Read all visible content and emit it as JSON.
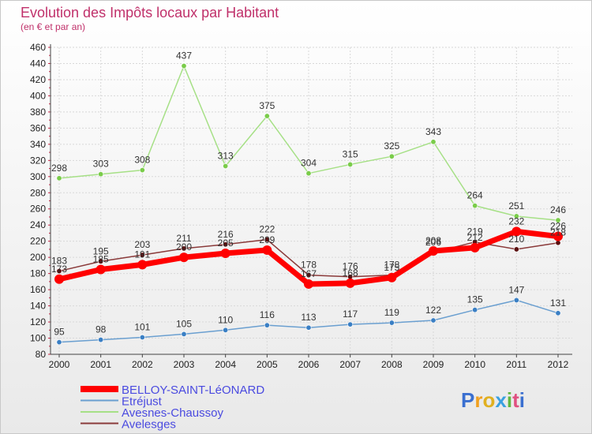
{
  "chart_data": {
    "type": "line",
    "title": "Evolution des Impôts locaux par Habitant",
    "subtitle": "(en € et par an)",
    "xlabel": "",
    "ylabel": "",
    "x": [
      "2000",
      "2001",
      "2002",
      "2003",
      "2004",
      "2005",
      "2006",
      "2007",
      "2008",
      "2009",
      "2010",
      "2011",
      "2012"
    ],
    "ylim": [
      80,
      460
    ],
    "ytick_step": 20,
    "grid": true,
    "legend": "bottom-left",
    "series": [
      {
        "name": "BELLOY-SAINT-LéONARD",
        "color": "#ff0000",
        "marker": "#ff0000",
        "values": [
          173,
          185,
          191,
          200,
          205,
          209,
          167,
          168,
          175,
          208,
          212,
          232,
          226
        ],
        "labels": [
          "173",
          "185",
          "191",
          "200",
          "205",
          "209",
          "167",
          "168",
          "175",
          "208",
          "212",
          "232",
          "226"
        ]
      },
      {
        "name": "Etréjust",
        "color": "#6a9fd0",
        "marker": "#3a7fc4",
        "values": [
          95,
          98,
          101,
          105,
          110,
          116,
          113,
          117,
          119,
          122,
          135,
          147,
          131
        ],
        "labels": [
          "95",
          "98",
          "101",
          "105",
          "110",
          "116",
          "113",
          "117",
          "119",
          "122",
          "135",
          "147",
          "131"
        ]
      },
      {
        "name": "Avesnes-Chaussoy",
        "color": "#a6e086",
        "marker": "#7acc4a",
        "values": [
          298,
          303,
          308,
          437,
          313,
          375,
          304,
          315,
          325,
          343,
          264,
          251,
          246
        ],
        "labels": [
          "298",
          "303",
          "308",
          "437",
          "313",
          "375",
          "304",
          "315",
          "325",
          "343",
          "264",
          "251",
          "246"
        ]
      },
      {
        "name": "Avelesges",
        "color": "#8a3a3a",
        "marker": "#5a1010",
        "values": [
          183,
          195,
          203,
          211,
          216,
          222,
          178,
          176,
          178,
          206,
          219,
          210,
          218
        ],
        "labels": [
          "183",
          "195",
          "203",
          "211",
          "216",
          "222",
          "178",
          "176",
          "178",
          "206",
          "219",
          "210",
          "218"
        ]
      }
    ]
  },
  "logo": {
    "text": "Proxiti"
  }
}
